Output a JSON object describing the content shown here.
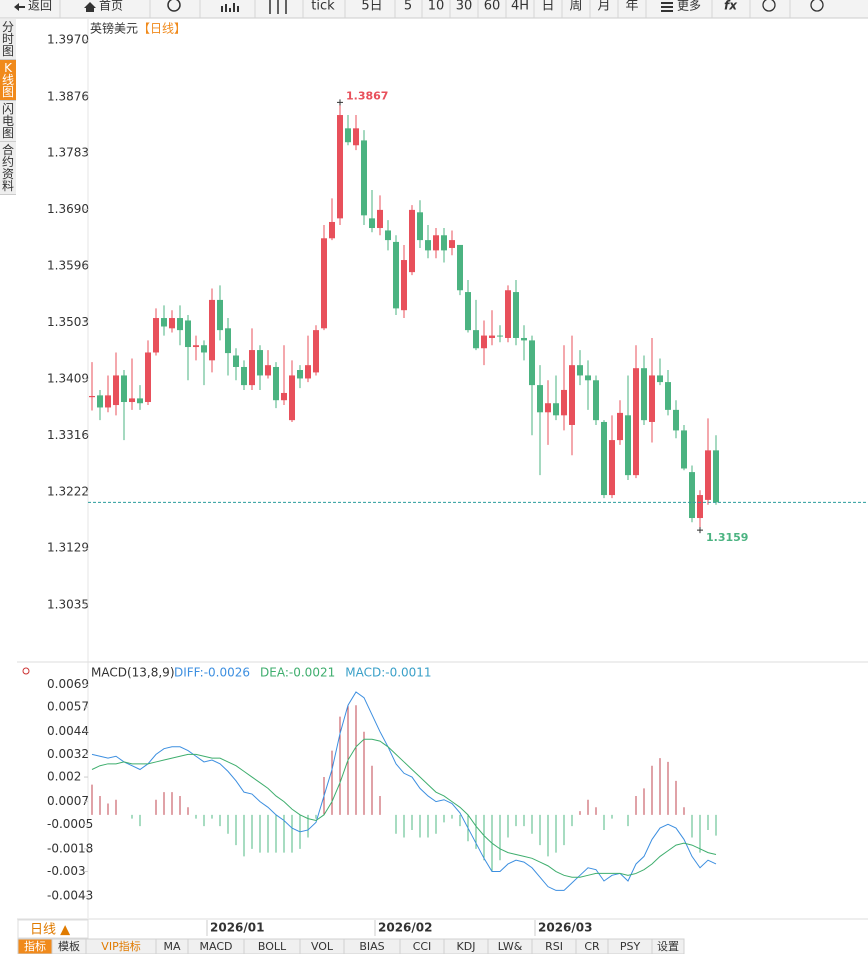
{
  "toolbar": {
    "back": "返回",
    "home": "首页",
    "buttons": [
      "tick",
      "5日",
      "5",
      "10",
      "30",
      "60",
      "4H",
      "日",
      "周",
      "月",
      "年"
    ],
    "more": "更多",
    "fx": "fx"
  },
  "sidebar": [
    "分时图",
    "K线图",
    "闪电图",
    "合约资料"
  ],
  "chart_data": [
    {
      "type": "candlestick",
      "title": "英镑美元",
      "subtitle": "【日线】",
      "categories": [
        null,
        null,
        null,
        null,
        null,
        null,
        null,
        null,
        null,
        null,
        null,
        null,
        null,
        null,
        "2026/01",
        null,
        null,
        null,
        null,
        null,
        null,
        null,
        null,
        null,
        null,
        null,
        null,
        null,
        null,
        null,
        null,
        null,
        null,
        null,
        null,
        "2026/02",
        null,
        null,
        null,
        null,
        null,
        null,
        null,
        null,
        null,
        null,
        null,
        null,
        null,
        null,
        null,
        null,
        null,
        null,
        null,
        "2026/03",
        null,
        null,
        null,
        null,
        null,
        null,
        null,
        null,
        null,
        null,
        null,
        null,
        null,
        null,
        null,
        null,
        null,
        null,
        null,
        null,
        null,
        null,
        null
      ],
      "open": [
        1.3379,
        1.3382,
        1.3362,
        1.3366,
        1.3415,
        1.3371,
        1.3377,
        1.3371,
        1.3453,
        1.351,
        1.3493,
        1.351,
        1.3506,
        1.3462,
        1.3465,
        1.344,
        1.354,
        1.3493,
        1.3448,
        1.3429,
        1.3399,
        1.3457,
        1.3415,
        1.3429,
        1.3374,
        1.3341,
        1.3424,
        1.341,
        1.342,
        1.3493,
        1.3642,
        1.3675,
        1.3824,
        1.3796,
        1.3804,
        1.3675,
        1.3659,
        1.3655,
        1.3636,
        1.3523,
        1.3586,
        1.3685,
        1.3639,
        1.3622,
        1.3647,
        1.3626,
        1.3631,
        1.3553,
        1.349,
        1.346,
        1.3477,
        1.3481,
        1.3477,
        1.3553,
        1.3477,
        1.3473,
        1.3399,
        1.3354,
        1.3369,
        1.3349,
        1.3333,
        1.3432,
        1.3415,
        1.3407,
        1.3338,
        1.3217,
        1.3308,
        1.3349,
        1.325,
        1.3427,
        1.3338,
        1.3415,
        1.3404,
        1.3358,
        1.3324,
        1.3255,
        1.3179,
        1.3209,
        1.3291
      ],
      "high": [
        1.3437,
        1.3391,
        1.3415,
        1.3453,
        1.3424,
        1.3443,
        1.3399,
        1.3473,
        1.3526,
        1.3531,
        1.3523,
        1.3531,
        1.3515,
        1.3481,
        1.3473,
        1.3559,
        1.3564,
        1.351,
        1.346,
        1.344,
        1.3493,
        1.3465,
        1.3457,
        1.3437,
        1.3465,
        1.344,
        1.3432,
        1.3481,
        1.3498,
        1.3664,
        1.3708,
        1.3867,
        1.3846,
        1.3846,
        1.3821,
        1.3722,
        1.3713,
        1.3672,
        1.3647,
        1.3631,
        1.3697,
        1.3705,
        1.3664,
        1.3659,
        1.3659,
        1.3655,
        1.3631,
        1.3573,
        1.354,
        1.3506,
        1.3523,
        1.3498,
        1.3564,
        1.3573,
        1.3498,
        1.3481,
        1.3432,
        1.3407,
        1.3415,
        1.3465,
        1.3481,
        1.3457,
        1.344,
        1.3415,
        1.3341,
        1.3349,
        1.3374,
        1.3415,
        1.3465,
        1.3448,
        1.3477,
        1.3443,
        1.3424,
        1.3374,
        1.3333,
        1.3266,
        1.3225,
        1.3344,
        1.3316
      ],
      "low": [
        1.3357,
        1.3341,
        1.3354,
        1.3349,
        1.3308,
        1.3358,
        1.3358,
        1.3366,
        1.3448,
        1.3481,
        1.3486,
        1.3465,
        1.3407,
        1.344,
        1.3399,
        1.342,
        1.3473,
        1.3415,
        1.3407,
        1.3391,
        1.3391,
        1.3391,
        1.341,
        1.3361,
        1.3366,
        1.3338,
        1.3394,
        1.3404,
        1.3415,
        1.349,
        1.3639,
        1.3664,
        1.3796,
        1.3788,
        1.3664,
        1.3652,
        1.3647,
        1.3622,
        1.3515,
        1.351,
        1.3581,
        1.3626,
        1.3609,
        1.3609,
        1.3602,
        1.3614,
        1.3548,
        1.3486,
        1.3457,
        1.3432,
        1.3465,
        1.347,
        1.347,
        1.3465,
        1.344,
        1.3316,
        1.325,
        1.33,
        1.3341,
        1.3324,
        1.3283,
        1.3399,
        1.3358,
        1.3333,
        1.3212,
        1.3212,
        1.33,
        1.3242,
        1.3245,
        1.3333,
        1.3304,
        1.3399,
        1.3349,
        1.3311,
        1.3258,
        1.3172,
        1.3159,
        1.3201,
        1.3201
      ],
      "close": [
        1.3381,
        1.3362,
        1.3382,
        1.3415,
        1.3371,
        1.3377,
        1.3369,
        1.3453,
        1.351,
        1.3496,
        1.351,
        1.349,
        1.3462,
        1.3465,
        1.3453,
        1.354,
        1.349,
        1.3452,
        1.3429,
        1.3399,
        1.3457,
        1.3415,
        1.3432,
        1.3374,
        1.3386,
        1.3415,
        1.341,
        1.3432,
        1.349,
        1.3642,
        1.3669,
        1.3846,
        1.3801,
        1.3824,
        1.368,
        1.3659,
        1.3689,
        1.3639,
        1.3526,
        1.3606,
        1.3689,
        1.3639,
        1.3622,
        1.3647,
        1.3622,
        1.3639,
        1.3556,
        1.349,
        1.346,
        1.3481,
        1.3481,
        1.348,
        1.3556,
        1.3477,
        1.3473,
        1.3399,
        1.3354,
        1.3369,
        1.3349,
        1.3391,
        1.3432,
        1.3415,
        1.3407,
        1.3341,
        1.3217,
        1.3308,
        1.3353,
        1.325,
        1.3427,
        1.3341,
        1.3415,
        1.3404,
        1.3358,
        1.3324,
        1.3261,
        1.3179,
        1.3217,
        1.3291,
        1.3205
      ],
      "up_color": "#e8505b",
      "down_color": "#4bb381",
      "last_line_color": "#2a9d9d",
      "ylim": [
        1.2944,
        1.4
      ],
      "yticks": [
        {
          "value": 1.397,
          "label": "1.3970"
        },
        1.3876,
        1.3783,
        {
          "value": 1.369,
          "label": "1.3690"
        },
        1.3596,
        1.3503,
        1.3409,
        1.3316,
        1.3222,
        1.3129,
        1.3035
      ],
      "grid": false
    },
    {
      "type": "macd",
      "title": "MACD(13,8,9)",
      "series": [
        {
          "name": "DIFF:",
          "color": "#3d8fe0",
          "values": [
            0.0032,
            0.0031,
            0.003,
            0.0031,
            0.0028,
            0.0026,
            0.0024,
            0.0027,
            0.0032,
            0.0035,
            0.0036,
            0.0036,
            0.0034,
            0.0031,
            0.0028,
            0.0029,
            0.0027,
            0.0023,
            0.0018,
            0.0012,
            0.0011,
            0.0007,
            0.0004,
            0.0,
            -0.0003,
            -0.0007,
            -0.0009,
            -0.0008,
            -0.0004,
            0.001,
            0.0024,
            0.0043,
            0.0058,
            0.0065,
            0.0062,
            0.0053,
            0.0044,
            0.0036,
            0.0027,
            0.0022,
            0.002,
            0.0014,
            0.001,
            0.0007,
            0.0008,
            0.0006,
            0.0001,
            -0.0007,
            -0.0015,
            -0.0023,
            -0.003,
            -0.003,
            -0.0026,
            -0.0024,
            -0.0025,
            -0.0028,
            -0.0033,
            -0.0038,
            -0.004,
            -0.004,
            -0.0036,
            -0.0032,
            -0.0028,
            -0.0029,
            -0.0035,
            -0.0032,
            -0.0031,
            -0.0035,
            -0.0026,
            -0.0022,
            -0.0013,
            -0.0007,
            -0.0005,
            -0.0007,
            -0.0013,
            -0.0022,
            -0.0028,
            -0.0024,
            -0.0026
          ]
        },
        {
          "name": "DEA:",
          "color": "#3fae6e",
          "values": [
            0.0024,
            0.0026,
            0.0027,
            0.0027,
            0.0028,
            0.0027,
            0.0027,
            0.0027,
            0.0028,
            0.0029,
            0.003,
            0.0031,
            0.0032,
            0.0032,
            0.0031,
            0.003,
            0.003,
            0.0028,
            0.0026,
            0.0023,
            0.002,
            0.0017,
            0.0014,
            0.001,
            0.0007,
            0.0003,
            0.0,
            -0.0002,
            -0.0003,
            0.0,
            0.0007,
            0.0017,
            0.0029,
            0.0036,
            0.004,
            0.004,
            0.0039,
            0.0036,
            0.0032,
            0.0028,
            0.0024,
            0.002,
            0.0016,
            0.0012,
            0.001,
            0.0007,
            0.0004,
            0.0,
            -0.0006,
            -0.0011,
            -0.0015,
            -0.0018,
            -0.002,
            -0.0021,
            -0.0022,
            -0.0023,
            -0.0025,
            -0.0027,
            -0.003,
            -0.0032,
            -0.0033,
            -0.0033,
            -0.0032,
            -0.0031,
            -0.0031,
            -0.0031,
            -0.0031,
            -0.0032,
            -0.0031,
            -0.0029,
            -0.0026,
            -0.0022,
            -0.0019,
            -0.0016,
            -0.0015,
            -0.0016,
            -0.0018,
            -0.002,
            -0.0021
          ]
        }
      ],
      "histogram": {
        "name": "MACD:",
        "label_color": "#3aa0c8",
        "up_color": "#c2454f",
        "down_color": "#4fb883",
        "values": [
          0.0016,
          0.001,
          0.0006,
          0.0008,
          0.0,
          -0.0002,
          -0.0006,
          0.0,
          0.0008,
          0.0012,
          0.0012,
          0.001,
          0.0004,
          -0.0002,
          -0.0006,
          -0.0002,
          -0.0006,
          -0.001,
          -0.0016,
          -0.0022,
          -0.0018,
          -0.002,
          -0.002,
          -0.002,
          -0.002,
          -0.002,
          -0.0018,
          -0.0012,
          -0.0002,
          0.002,
          0.0034,
          0.0052,
          0.0058,
          0.0058,
          0.0044,
          0.0026,
          0.001,
          0.0,
          -0.001,
          -0.0012,
          -0.0008,
          -0.0012,
          -0.0012,
          -0.001,
          -0.0004,
          -0.0002,
          -0.0006,
          -0.0014,
          -0.0018,
          -0.0024,
          -0.003,
          -0.0024,
          -0.0012,
          -0.0006,
          -0.0006,
          -0.001,
          -0.0016,
          -0.0022,
          -0.002,
          -0.0016,
          -0.0006,
          0.0002,
          0.0008,
          0.0004,
          -0.0008,
          -0.0002,
          0.0,
          -0.0006,
          0.001,
          0.0014,
          0.0026,
          0.003,
          0.0028,
          0.0018,
          0.0004,
          -0.0012,
          -0.002,
          -0.0008,
          -0.0011
        ]
      },
      "ylim": [
        -0.0053,
        0.0074
      ],
      "yticks": [
        0.0069,
        0.0057,
        0.0044,
        0.0032,
        0.002,
        0.0007,
        -0.0005,
        -0.0018,
        -0.003,
        -0.0043
      ]
    }
  ],
  "bottom": {
    "period": "日线 ▲",
    "tabs": [
      "指标",
      "模板",
      "VIP指标",
      "MA",
      "MACD",
      "BOLL",
      "VOL",
      "BIAS",
      "CCI",
      "KDJ",
      "LW&",
      "RSI",
      "CR",
      "PSY",
      "设置"
    ]
  }
}
